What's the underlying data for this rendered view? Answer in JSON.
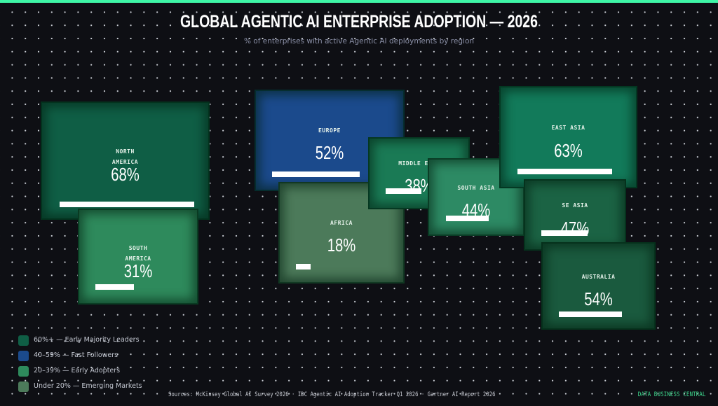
{
  "header": {
    "title": "GLOBAL AGENTIC AI ENTERPRISE ADOPTION — 2026",
    "subtitle": "% of enterprises with active Agentic AI deployments by region",
    "accent_color": "#3ef5a6"
  },
  "chart_data": {
    "type": "treemap-tiles",
    "title": "GLOBAL AGENTIC AI ENTERPRISE ADOPTION — 2026",
    "subtitle": "% of enterprises with active Agentic AI deployments by region",
    "unit": "%",
    "regions": [
      {
        "id": "north-america",
        "name": "NORTH AMERICA",
        "line1": "NORTH",
        "line2": "AMERICA",
        "value": 68,
        "label": "68%",
        "tier": "60%+"
      },
      {
        "id": "south-america",
        "name": "SOUTH AMERICA",
        "line1": "SOUTH",
        "line2": "AMERICA",
        "value": 31,
        "label": "31%",
        "tier": "20-39%"
      },
      {
        "id": "europe",
        "name": "EUROPE",
        "line1": "EUROPE",
        "line2": "",
        "value": 52,
        "label": "52%",
        "tier": "40-59%"
      },
      {
        "id": "africa",
        "name": "AFRICA",
        "line1": "AFRICA",
        "line2": "",
        "value": 18,
        "label": "18%",
        "tier": "Under 20%"
      },
      {
        "id": "middle-east",
        "name": "MIDDLE EAST",
        "line1": "MIDDLE EAST",
        "line2": "",
        "value": 38,
        "label": "38%",
        "tier": "20-39%"
      },
      {
        "id": "south-asia",
        "name": "SOUTH ASIA",
        "line1": "SOUTH ASIA",
        "line2": "",
        "value": 44,
        "label": "44%",
        "tier": "40-59%"
      },
      {
        "id": "east-asia",
        "name": "EAST ASIA",
        "line1": "EAST ASIA",
        "line2": "",
        "value": 63,
        "label": "63%",
        "tier": "60%+"
      },
      {
        "id": "se-asia",
        "name": "SE ASIA",
        "line1": "SE ASIA",
        "line2": "",
        "value": 47,
        "label": "47%",
        "tier": "40-59%"
      },
      {
        "id": "australia",
        "name": "AUSTRALIA",
        "line1": "AUSTRALIA",
        "line2": "",
        "value": 54,
        "label": "54%",
        "tier": "40-59%"
      }
    ],
    "legend_placement": "bottom-left",
    "legend": [
      {
        "range": "60%+",
        "label": "60%+  — Early Majority Leaders",
        "color": "#0f5e45"
      },
      {
        "range": "40-59%",
        "label": "40–59%  — Fast Followers",
        "color": "#1b4a8c"
      },
      {
        "range": "20-39%",
        "label": "20–39%  — Early Adopters",
        "color": "#2e8a5c"
      },
      {
        "range": "Under 20%",
        "label": "Under 20%  — Emerging Markets",
        "color": "#4c7a5a"
      }
    ]
  },
  "colors": {
    "north-america": "#0f5e45",
    "south-america": "#2e8a5c",
    "europe": "#1b4a8c",
    "africa": "#4c7a5a",
    "middle-east": "#1a7a55",
    "south-asia": "#2d8a64",
    "east-asia": "#127a5a",
    "se-asia": "#1b6344",
    "australia": "#1a5a3e"
  },
  "footer": {
    "sources": "Sources: McKinsey Global AI Survey 2026 · IDC Agentic AI Adoption Tracker Q1 2026 · Gartner AI Report 2026",
    "brand": "DATA BUSINESS CENTRAL"
  }
}
